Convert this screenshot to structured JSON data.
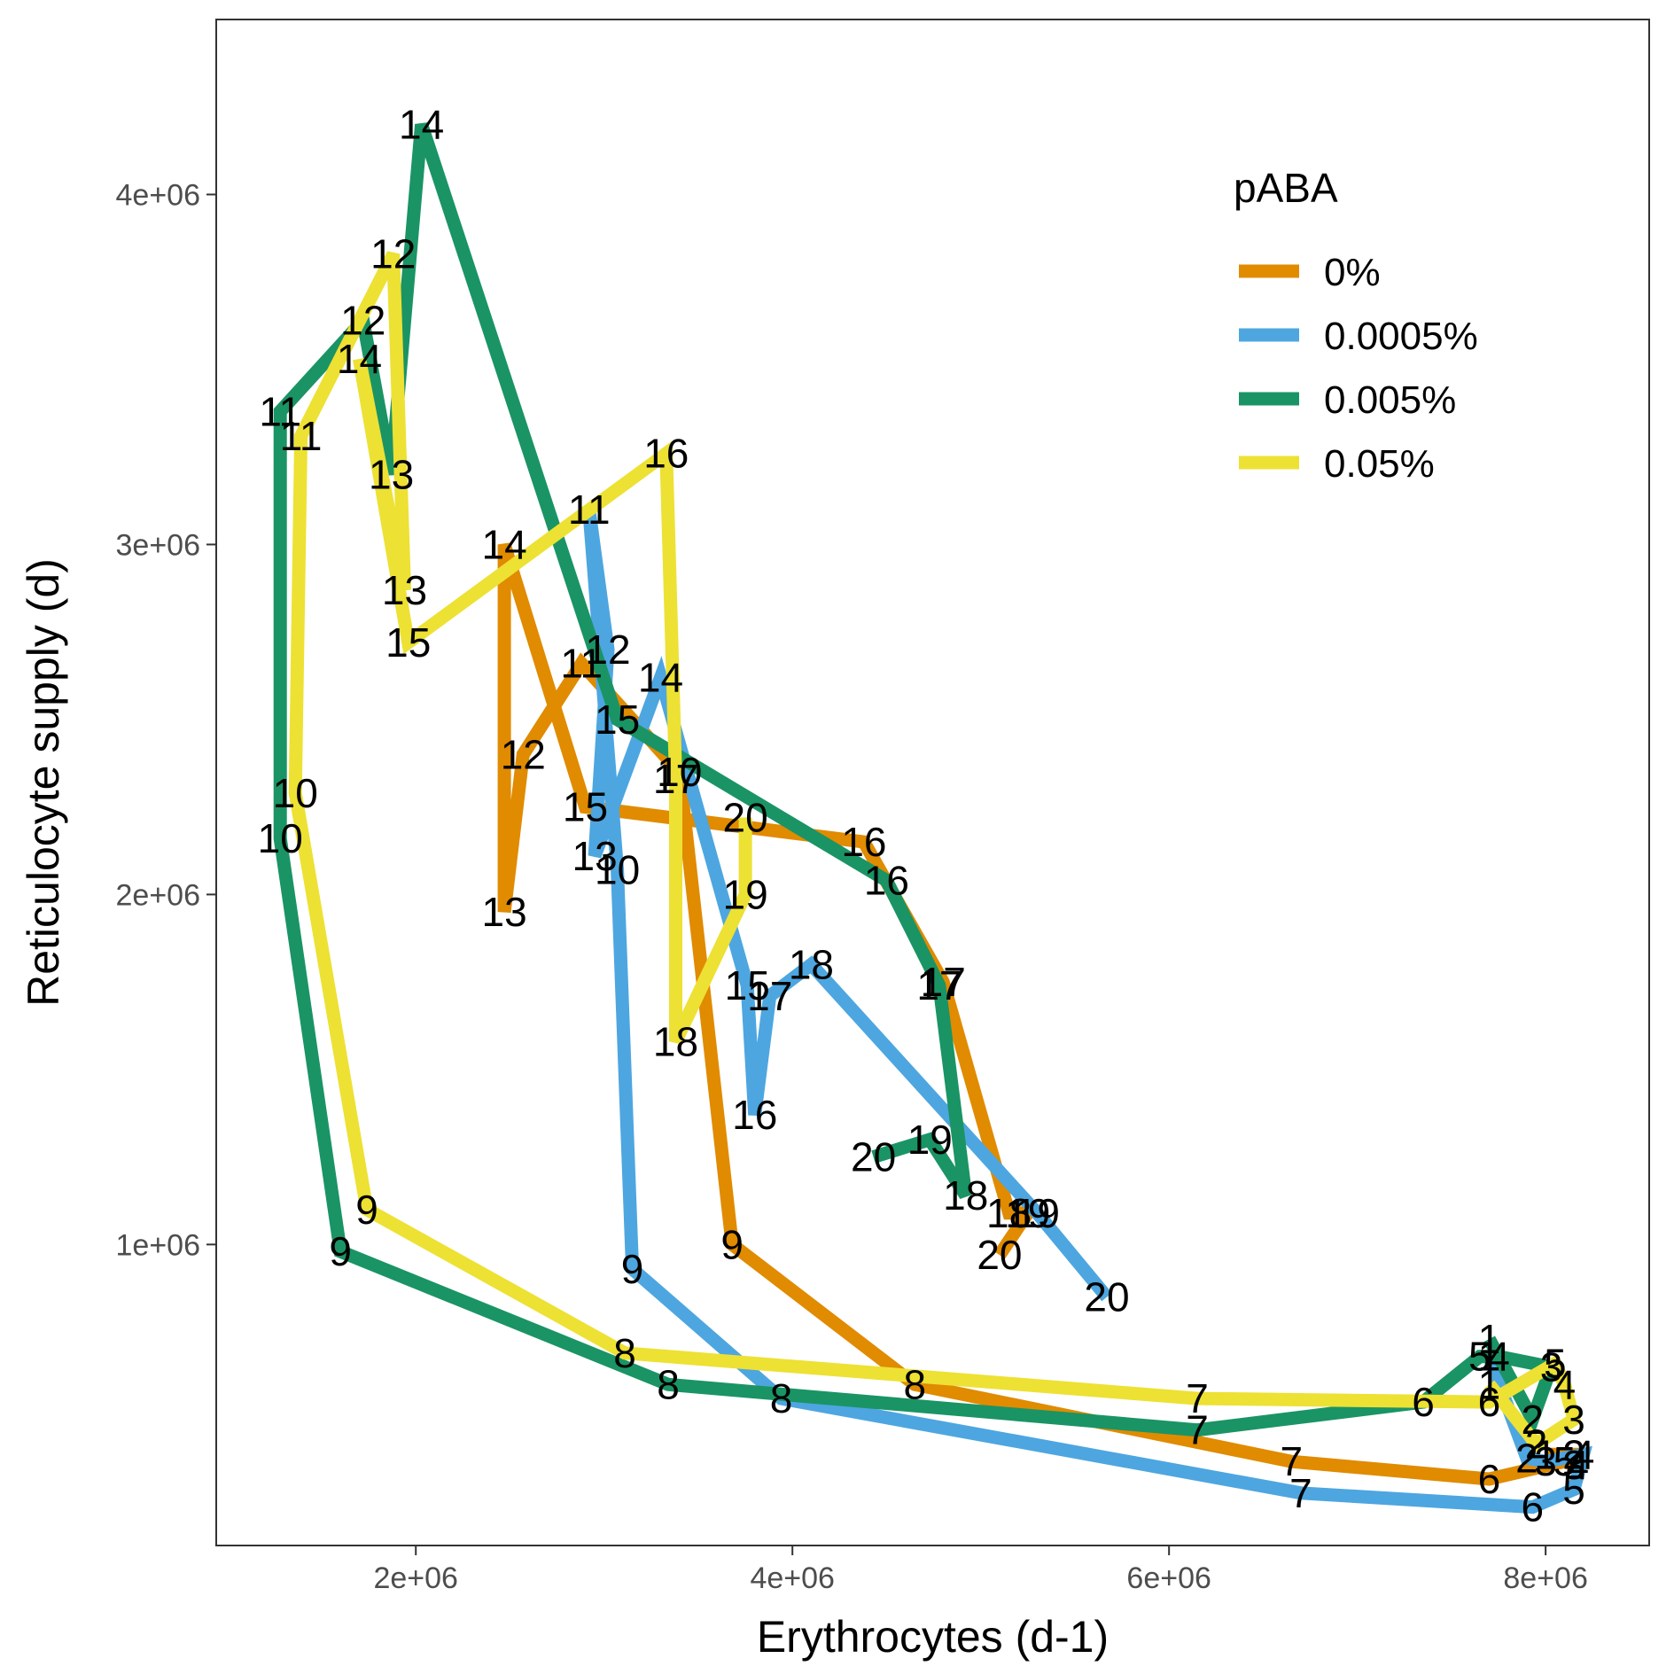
{
  "chart_data": {
    "type": "line",
    "xlabel": "Erythrocytes (d-1)",
    "ylabel": "Reticulocyte supply (d)",
    "xlim": [
      940000,
      8550000
    ],
    "ylim": [
      140000,
      4500000
    ],
    "x_ticks": [
      {
        "value": 2000000,
        "label": "2e+06"
      },
      {
        "value": 4000000,
        "label": "4e+06"
      },
      {
        "value": 6000000,
        "label": "6e+06"
      },
      {
        "value": 8000000,
        "label": "8e+06"
      }
    ],
    "y_ticks": [
      {
        "value": 1000000,
        "label": "1e+06"
      },
      {
        "value": 2000000,
        "label": "2e+06"
      },
      {
        "value": 3000000,
        "label": "3e+06"
      },
      {
        "value": 4000000,
        "label": "4e+06"
      }
    ],
    "grid": false,
    "legend": {
      "title": "pABA",
      "position": "top-right"
    },
    "series": [
      {
        "name": "0%",
        "color": "#E08B00",
        "points": [
          {
            "day": "1",
            "x": 8000000,
            "y": 400000
          },
          {
            "day": "2",
            "x": 8150000,
            "y": 400000
          },
          {
            "day": "3",
            "x": 8150000,
            "y": 370000
          },
          {
            "day": "4",
            "x": 8170000,
            "y": 370000
          },
          {
            "day": "5",
            "x": 8100000,
            "y": 380000
          },
          {
            "day": "6",
            "x": 7700000,
            "y": 330000
          },
          {
            "day": "7",
            "x": 6650000,
            "y": 380000
          },
          {
            "day": "8",
            "x": 4650000,
            "y": 600000
          },
          {
            "day": "9",
            "x": 3680000,
            "y": 1000000
          },
          {
            "day": "10",
            "x": 3400000,
            "y": 2350000
          },
          {
            "day": "11",
            "x": 2880000,
            "y": 2660000
          },
          {
            "day": "12",
            "x": 2570000,
            "y": 2400000
          },
          {
            "day": "13",
            "x": 2470000,
            "y": 1950000
          },
          {
            "day": "14",
            "x": 2470000,
            "y": 3000000
          },
          {
            "day": "15",
            "x": 2900000,
            "y": 2250000
          },
          {
            "day": "16",
            "x": 4380000,
            "y": 2150000
          },
          {
            "day": "17",
            "x": 4800000,
            "y": 1750000
          },
          {
            "day": "18",
            "x": 5150000,
            "y": 1090000
          },
          {
            "day": "19",
            "x": 5250000,
            "y": 1090000
          },
          {
            "day": "20",
            "x": 5100000,
            "y": 970000
          }
        ]
      },
      {
        "name": "0.0005%",
        "color": "#4DA6E0",
        "points": [
          {
            "day": "1",
            "x": 7700000,
            "y": 680000
          },
          {
            "day": "2",
            "x": 7900000,
            "y": 390000
          },
          {
            "day": "3",
            "x": 8000000,
            "y": 380000
          },
          {
            "day": "4",
            "x": 8200000,
            "y": 400000
          },
          {
            "day": "5",
            "x": 8150000,
            "y": 300000
          },
          {
            "day": "6",
            "x": 7930000,
            "y": 250000
          },
          {
            "day": "7",
            "x": 6700000,
            "y": 290000
          },
          {
            "day": "8",
            "x": 3940000,
            "y": 560000
          },
          {
            "day": "9",
            "x": 3150000,
            "y": 930000
          },
          {
            "day": "10",
            "x": 3070000,
            "y": 2070000
          },
          {
            "day": "11",
            "x": 2920000,
            "y": 3100000
          },
          {
            "day": "12",
            "x": 3020000,
            "y": 2700000
          },
          {
            "day": "13",
            "x": 2950000,
            "y": 2110000
          },
          {
            "day": "14",
            "x": 3300000,
            "y": 2620000
          },
          {
            "day": "15",
            "x": 3760000,
            "y": 1740000
          },
          {
            "day": "16",
            "x": 3800000,
            "y": 1370000
          },
          {
            "day": "17",
            "x": 3880000,
            "y": 1710000
          },
          {
            "day": "18",
            "x": 4100000,
            "y": 1800000
          },
          {
            "day": "19",
            "x": 5300000,
            "y": 1090000
          },
          {
            "day": "20",
            "x": 5670000,
            "y": 850000
          }
        ]
      },
      {
        "name": "0.005%",
        "color": "#1A9465",
        "points": [
          {
            "day": "1",
            "x": 7700000,
            "y": 730000
          },
          {
            "day": "2",
            "x": 7930000,
            "y": 500000
          },
          {
            "day": "3",
            "x": 8030000,
            "y": 650000
          },
          {
            "day": "4",
            "x": 7750000,
            "y": 680000
          },
          {
            "day": "5",
            "x": 7650000,
            "y": 680000
          },
          {
            "day": "6",
            "x": 7350000,
            "y": 550000
          },
          {
            "day": "7",
            "x": 6150000,
            "y": 470000
          },
          {
            "day": "8",
            "x": 3340000,
            "y": 600000
          },
          {
            "day": "9",
            "x": 1600000,
            "y": 980000
          },
          {
            "day": "10",
            "x": 1280000,
            "y": 2160000
          },
          {
            "day": "11",
            "x": 1280000,
            "y": 3380000
          },
          {
            "day": "12",
            "x": 1720000,
            "y": 3640000
          },
          {
            "day": "13",
            "x": 1870000,
            "y": 3200000
          },
          {
            "day": "14",
            "x": 2030000,
            "y": 4200000
          },
          {
            "day": "15",
            "x": 3070000,
            "y": 2500000
          },
          {
            "day": "16",
            "x": 4500000,
            "y": 2040000
          },
          {
            "day": "17",
            "x": 4780000,
            "y": 1740000
          },
          {
            "day": "18",
            "x": 4920000,
            "y": 1140000
          },
          {
            "day": "19",
            "x": 4730000,
            "y": 1300000
          },
          {
            "day": "20",
            "x": 4430000,
            "y": 1250000
          }
        ]
      },
      {
        "name": "0.05%",
        "color": "#EDE133",
        "points": [
          {
            "day": "1",
            "x": 7700000,
            "y": 600000
          },
          {
            "day": "2",
            "x": 7950000,
            "y": 430000
          },
          {
            "day": "3",
            "x": 8150000,
            "y": 500000
          },
          {
            "day": "4",
            "x": 8100000,
            "y": 600000
          },
          {
            "day": "5",
            "x": 8050000,
            "y": 660000
          },
          {
            "day": "6",
            "x": 7700000,
            "y": 550000
          },
          {
            "day": "7",
            "x": 6150000,
            "y": 560000
          },
          {
            "day": "8",
            "x": 3110000,
            "y": 690000
          },
          {
            "day": "9",
            "x": 1740000,
            "y": 1100000
          },
          {
            "day": "10",
            "x": 1360000,
            "y": 2290000
          },
          {
            "day": "11",
            "x": 1390000,
            "y": 3310000
          },
          {
            "day": "12",
            "x": 1880000,
            "y": 3830000
          },
          {
            "day": "13",
            "x": 1940000,
            "y": 2870000
          },
          {
            "day": "14",
            "x": 1700000,
            "y": 3530000
          },
          {
            "day": "15",
            "x": 1960000,
            "y": 2720000
          },
          {
            "day": "16",
            "x": 3330000,
            "y": 3260000
          },
          {
            "day": "17",
            "x": 3380000,
            "y": 2330000
          },
          {
            "day": "18",
            "x": 3380000,
            "y": 1580000
          },
          {
            "day": "19",
            "x": 3750000,
            "y": 2000000
          },
          {
            "day": "20",
            "x": 3750000,
            "y": 2220000
          }
        ]
      }
    ]
  }
}
